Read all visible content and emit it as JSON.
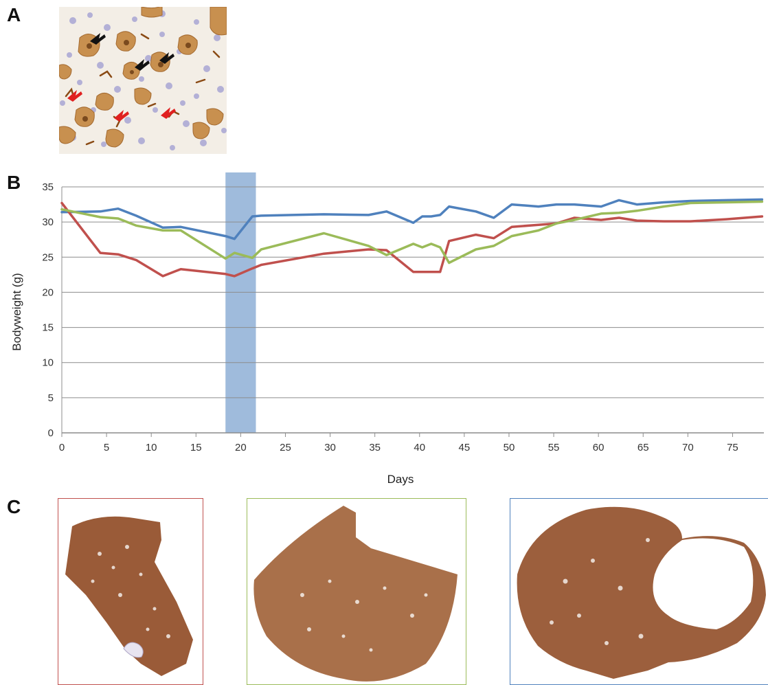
{
  "panels": {
    "a": "A",
    "b": "B",
    "c": "C"
  },
  "colors": {
    "red": "#c0504d",
    "green": "#9bbb59",
    "blue": "#4f81bd",
    "highlight": "#9fbbdc",
    "grid": "#8c8c8c",
    "tissue": "#a5643f",
    "micro_background": "#f3eee6",
    "arrow_black": "#111111",
    "arrow_red": "#e02020"
  },
  "micrograph": {
    "arrows_black": 3,
    "arrows_red": 3
  },
  "chart_data": {
    "type": "line",
    "xlabel": "Days",
    "ylabel": "Bodyweight (g)",
    "xlim": [
      0,
      78.5
    ],
    "ylim": [
      0,
      35
    ],
    "xticks": [
      0,
      5,
      10,
      15,
      20,
      25,
      30,
      35,
      40,
      45,
      50,
      55,
      60,
      65,
      70,
      75
    ],
    "yticks": [
      0,
      5,
      10,
      15,
      20,
      25,
      30,
      35
    ],
    "grid": "horizontal",
    "highlight_band": [
      18.3,
      21.7
    ],
    "series": [
      {
        "color": "#4f81bd",
        "points": [
          [
            0,
            31.4
          ],
          [
            4.3,
            31.5
          ],
          [
            6.3,
            31.9
          ],
          [
            8.3,
            30.9
          ],
          [
            11.3,
            29.2
          ],
          [
            13.3,
            29.3
          ],
          [
            18.3,
            28.0
          ],
          [
            19.3,
            27.6
          ],
          [
            21.3,
            30.8
          ],
          [
            22.3,
            30.9
          ],
          [
            29.3,
            31.1
          ],
          [
            34.3,
            31.0
          ],
          [
            36.3,
            31.5
          ],
          [
            39.3,
            29.9
          ],
          [
            40.3,
            30.8
          ],
          [
            41.3,
            30.8
          ],
          [
            42.3,
            31.0
          ],
          [
            43.3,
            32.2
          ],
          [
            46.3,
            31.5
          ],
          [
            48.3,
            30.6
          ],
          [
            50.3,
            32.5
          ],
          [
            53.3,
            32.2
          ],
          [
            55.3,
            32.5
          ],
          [
            57.3,
            32.5
          ],
          [
            60.3,
            32.2
          ],
          [
            62.3,
            33.1
          ],
          [
            64.3,
            32.5
          ],
          [
            67.3,
            32.8
          ],
          [
            70.3,
            33.0
          ],
          [
            74.3,
            33.1
          ],
          [
            78.3,
            33.2
          ]
        ]
      },
      {
        "color": "#c0504d",
        "points": [
          [
            0,
            32.7
          ],
          [
            4.3,
            25.6
          ],
          [
            6.3,
            25.4
          ],
          [
            8.3,
            24.6
          ],
          [
            11.3,
            22.3
          ],
          [
            13.3,
            23.3
          ],
          [
            18.3,
            22.6
          ],
          [
            19.3,
            22.3
          ],
          [
            21.3,
            23.4
          ],
          [
            22.3,
            23.9
          ],
          [
            29.3,
            25.5
          ],
          [
            34.3,
            26.1
          ],
          [
            36.3,
            26.0
          ],
          [
            39.3,
            22.9
          ],
          [
            40.3,
            22.9
          ],
          [
            41.3,
            22.9
          ],
          [
            42.3,
            22.9
          ],
          [
            43.3,
            27.3
          ],
          [
            46.3,
            28.2
          ],
          [
            48.3,
            27.7
          ],
          [
            50.3,
            29.3
          ],
          [
            53.3,
            29.6
          ],
          [
            55.3,
            29.8
          ],
          [
            57.3,
            30.6
          ],
          [
            60.3,
            30.3
          ],
          [
            62.3,
            30.6
          ],
          [
            64.3,
            30.2
          ],
          [
            67.3,
            30.1
          ],
          [
            70.3,
            30.1
          ],
          [
            74.3,
            30.4
          ],
          [
            78.3,
            30.8
          ]
        ]
      },
      {
        "color": "#9bbb59",
        "points": [
          [
            0,
            31.8
          ],
          [
            4.3,
            30.7
          ],
          [
            6.3,
            30.5
          ],
          [
            8.3,
            29.5
          ],
          [
            11.3,
            28.8
          ],
          [
            13.3,
            28.8
          ],
          [
            18.3,
            24.8
          ],
          [
            19.3,
            25.6
          ],
          [
            21.3,
            24.9
          ],
          [
            22.3,
            26.1
          ],
          [
            29.3,
            28.4
          ],
          [
            34.3,
            26.6
          ],
          [
            36.3,
            25.3
          ],
          [
            39.3,
            26.9
          ],
          [
            40.3,
            26.4
          ],
          [
            41.3,
            26.9
          ],
          [
            42.3,
            26.4
          ],
          [
            43.3,
            24.2
          ],
          [
            46.3,
            26.1
          ],
          [
            48.3,
            26.6
          ],
          [
            50.3,
            28.0
          ],
          [
            53.3,
            28.8
          ],
          [
            55.3,
            29.8
          ],
          [
            57.3,
            30.3
          ],
          [
            60.3,
            31.2
          ],
          [
            62.3,
            31.3
          ],
          [
            64.3,
            31.6
          ],
          [
            67.3,
            32.2
          ],
          [
            70.3,
            32.7
          ],
          [
            74.3,
            32.8
          ],
          [
            78.3,
            32.9
          ]
        ]
      }
    ]
  }
}
